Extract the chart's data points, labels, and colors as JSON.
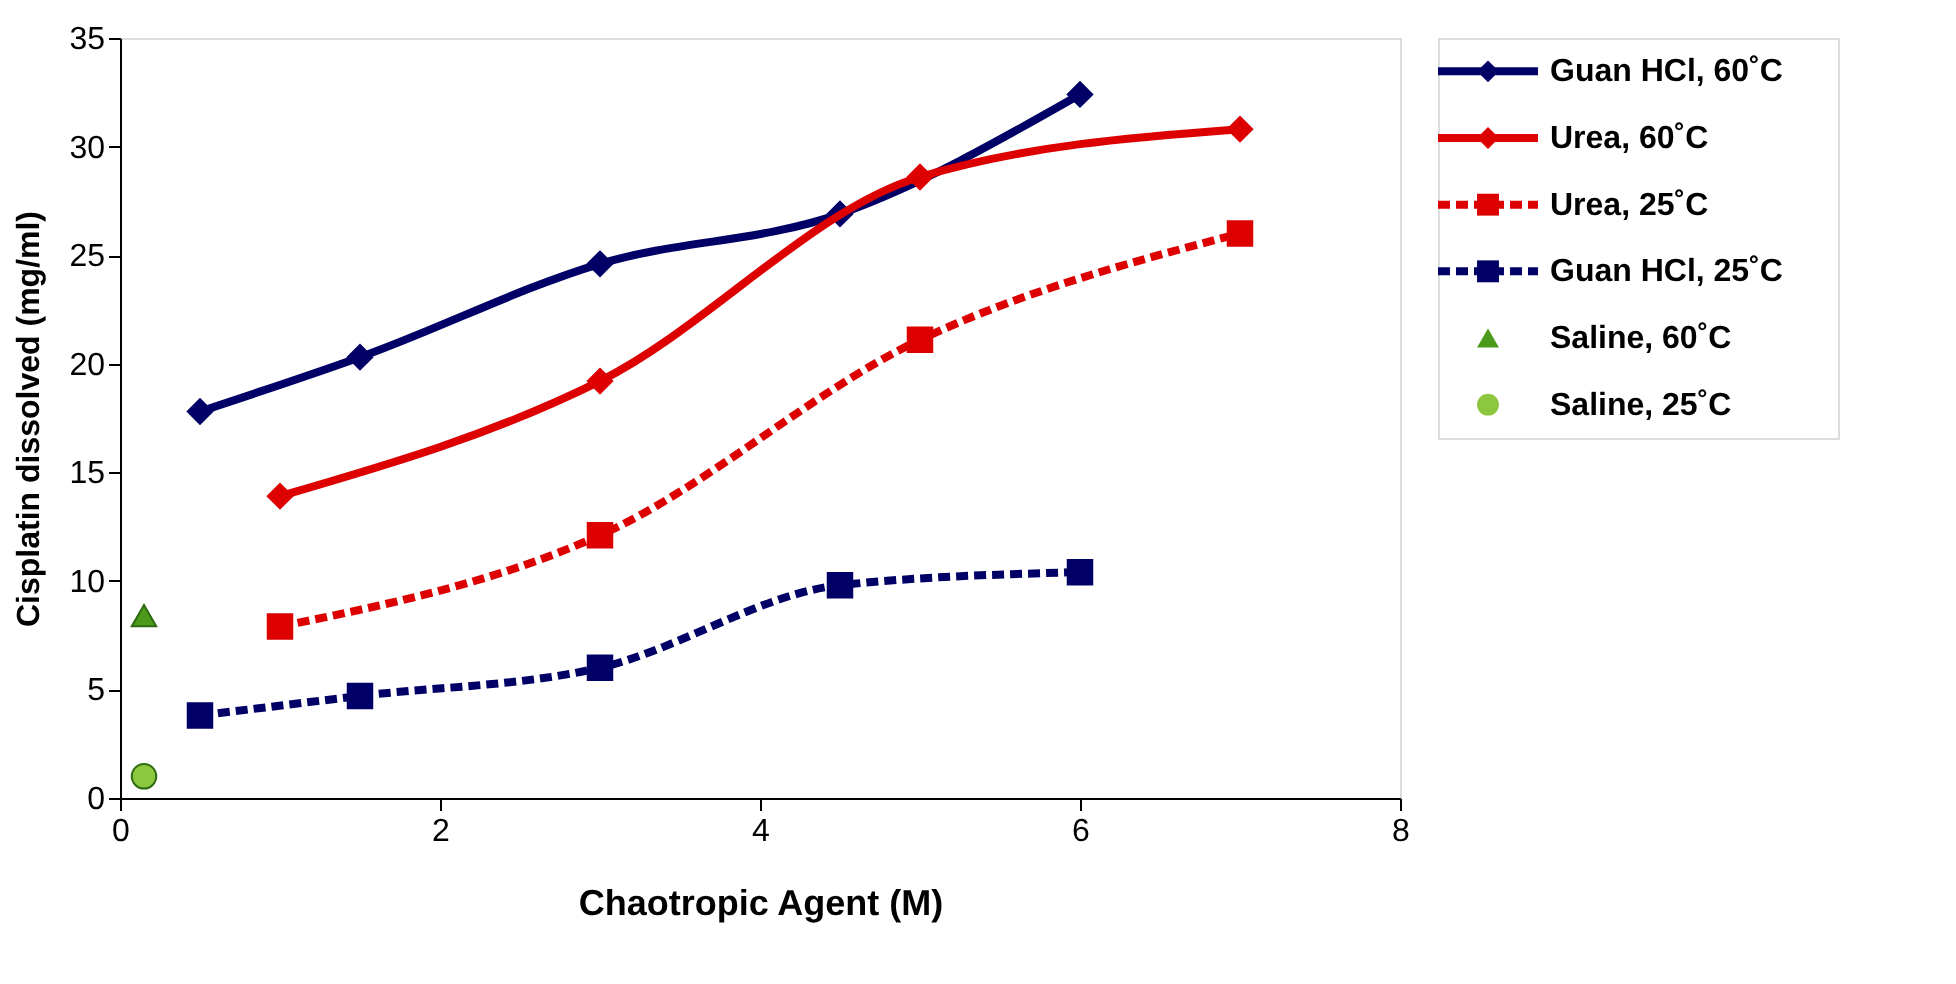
{
  "chart_data": {
    "type": "line",
    "xlabel": "Chaotropic Agent (M)",
    "ylabel": "Cisplatin dissolved (mg/ml)",
    "xlim": [
      0,
      8
    ],
    "xticks": [
      0,
      2,
      4,
      6,
      8
    ],
    "ylim": [
      0,
      35
    ],
    "yticks": [
      0,
      5,
      10,
      15,
      20,
      25,
      30,
      35
    ],
    "grid": false,
    "legend": "right",
    "series": [
      {
        "name": "Guan HCl, 60˚C",
        "color": "#000066",
        "type": "line",
        "marker": "diamond",
        "line_style": "solid",
        "x": [
          0.5,
          1.5,
          3,
          4.5,
          6
        ],
        "values": [
          17.8,
          20.3,
          24.6,
          26.9,
          32.4
        ]
      },
      {
        "name": "Urea, 60˚C",
        "color": "#dd0000",
        "type": "line",
        "marker": "diamond",
        "line_style": "solid",
        "x": [
          1,
          3,
          5,
          7
        ],
        "values": [
          13.9,
          19.2,
          28.6,
          30.8
        ]
      },
      {
        "name": "Urea, 25˚C",
        "color": "#dd0000",
        "type": "line",
        "marker": "square",
        "line_style": "dashed",
        "x": [
          1,
          3,
          5,
          7
        ],
        "values": [
          7.9,
          12.1,
          21.1,
          26.0
        ]
      },
      {
        "name": "Guan HCl, 25˚C",
        "color": "#000066",
        "type": "line",
        "marker": "square",
        "line_style": "dashed",
        "x": [
          0.5,
          1.5,
          3,
          4.5,
          6
        ],
        "values": [
          3.8,
          4.7,
          6.0,
          9.8,
          10.4
        ]
      },
      {
        "name": "Saline, 60˚C",
        "color": "#4c9a1a",
        "type": "scatter",
        "marker": "triangle",
        "x": [
          0.15
        ],
        "values": [
          8.4
        ]
      },
      {
        "name": "Saline, 25˚C",
        "color": "#8dc63f",
        "type": "scatter",
        "marker": "circle",
        "x": [
          0.15
        ],
        "values": [
          1.0
        ]
      }
    ]
  }
}
